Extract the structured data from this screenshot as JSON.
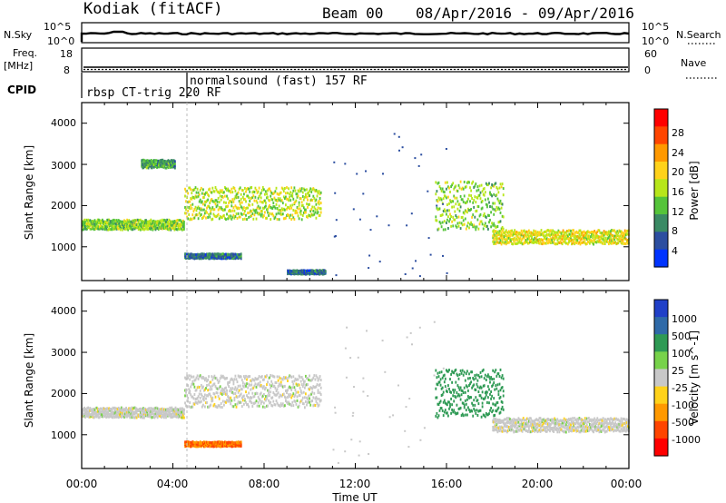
{
  "header": {
    "station": "Kodiak (fitACF)",
    "beam": "Beam 00",
    "date_range": "08/Apr/2016 - 09/Apr/2016"
  },
  "top_panels": {
    "nsky_label": "N.Sky",
    "nsky_ticks": [
      "10^5",
      "10^0"
    ],
    "nsearch_label": "N.Search",
    "nsearch_ticks": [
      "10^5",
      "10^0"
    ],
    "freq_label": "Freq.",
    "freq_unit": "[MHz]",
    "freq_ticks": [
      "18",
      "8"
    ],
    "nave_label": "Nave",
    "nave_ticks": [
      "60",
      "0"
    ],
    "cpid_label": "CPID",
    "cpid_segments": [
      "rbsp CT-trig 220 RF",
      "normalsound (fast) 157 RF"
    ]
  },
  "axes": {
    "ylabel": "Slant Range [km]",
    "yticks": [
      "4000",
      "3000",
      "2000",
      "1000"
    ],
    "xlabel": "Time UT",
    "xticks": [
      "00:00",
      "04:00",
      "08:00",
      "12:00",
      "16:00",
      "20:00",
      "00:00"
    ]
  },
  "power_scale": {
    "label": "Power [dB]",
    "ticks": [
      "28",
      "24",
      "20",
      "16",
      "12",
      "8",
      "4"
    ],
    "colors": [
      "#ff0000",
      "#ff4500",
      "#ff9900",
      "#ffd21a",
      "#b7e61a",
      "#55c43a",
      "#3a8a64",
      "#2c4ea0",
      "#0033ff"
    ]
  },
  "velocity_scale": {
    "label": "Velocity [m s^-1]",
    "ticks": [
      "1000",
      "500",
      "100",
      "25",
      "-25",
      "-100",
      "-500",
      "-1000"
    ],
    "colors": [
      "#2040c8",
      "#2f6aa8",
      "#2e9a54",
      "#77d24a",
      "#c8c8c8",
      "#ffd21a",
      "#ff9900",
      "#ff4500",
      "#ff0000"
    ]
  },
  "chart_data": [
    {
      "type": "heatmap",
      "name": "Power",
      "x_range_hours": [
        0,
        24
      ],
      "y_range_km": [
        180,
        4500
      ],
      "color_label": "Power [dB]",
      "color_range_db": [
        0,
        32
      ],
      "features": [
        {
          "t0": 0.0,
          "t1": 4.5,
          "r0": 1400,
          "r1": 1650,
          "db": 14
        },
        {
          "t0": 4.5,
          "t1": 10.5,
          "r0": 1650,
          "r1": 2450,
          "db": 16
        },
        {
          "t0": 2.6,
          "t1": 4.1,
          "r0": 2900,
          "r1": 3100,
          "db": 10
        },
        {
          "t0": 4.5,
          "t1": 7.0,
          "r0": 700,
          "r1": 820,
          "db": 6
        },
        {
          "t0": 9.0,
          "t1": 10.7,
          "r0": 320,
          "r1": 420,
          "db": 6
        },
        {
          "t0": 15.5,
          "t1": 18.5,
          "r0": 1400,
          "r1": 2600,
          "db": 14
        },
        {
          "t0": 18.0,
          "t1": 24.0,
          "r0": 1050,
          "r1": 1400,
          "db": 18
        }
      ]
    },
    {
      "type": "heatmap",
      "name": "Velocity",
      "x_range_hours": [
        0,
        24
      ],
      "y_range_km": [
        180,
        4500
      ],
      "color_label": "Velocity [m s^-1]",
      "color_range_ms": [
        -1000,
        1000
      ],
      "features": [
        {
          "t0": 0.0,
          "t1": 4.5,
          "r0": 1400,
          "r1": 1650,
          "v": 0
        },
        {
          "t0": 4.5,
          "t1": 10.5,
          "r0": 1650,
          "r1": 2450,
          "v": 0
        },
        {
          "t0": 4.5,
          "t1": 7.0,
          "r0": 700,
          "r1": 820,
          "v": -300
        },
        {
          "t0": 15.5,
          "t1": 18.5,
          "r0": 1400,
          "r1": 2600,
          "v": 150
        },
        {
          "t0": 18.0,
          "t1": 24.0,
          "r0": 1050,
          "r1": 1400,
          "v": 0
        }
      ]
    }
  ]
}
